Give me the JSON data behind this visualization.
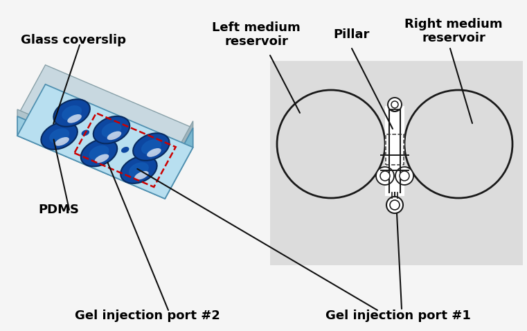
{
  "fig_bg": "#f5f5f5",
  "labels": {
    "gel_port2": "Gel injection port #2",
    "gel_port1": "Gel injection port #1",
    "pdms": "PDMS",
    "glass": "Glass coverslip",
    "left_res": "Left medium\nreservoir",
    "pillar": "Pillar",
    "right_res": "Right medium\nreservoir"
  },
  "chip_top": "#b8dff0",
  "chip_top_light": "#cce8f5",
  "chip_front": "#9acce0",
  "chip_right": "#7ab8d0",
  "glass_top": "#c8d8e0",
  "glass_front": "#b0c4cc",
  "glass_right": "#a0b4bc",
  "well_dark": "#0d47a1",
  "well_mid": "#1565c0",
  "well_light": "#bbdefb",
  "gray_box": "#e2e2e2",
  "red_dashed": "#cc0000",
  "line_color": "#111111",
  "font_size": 13,
  "font_size_sm": 11
}
